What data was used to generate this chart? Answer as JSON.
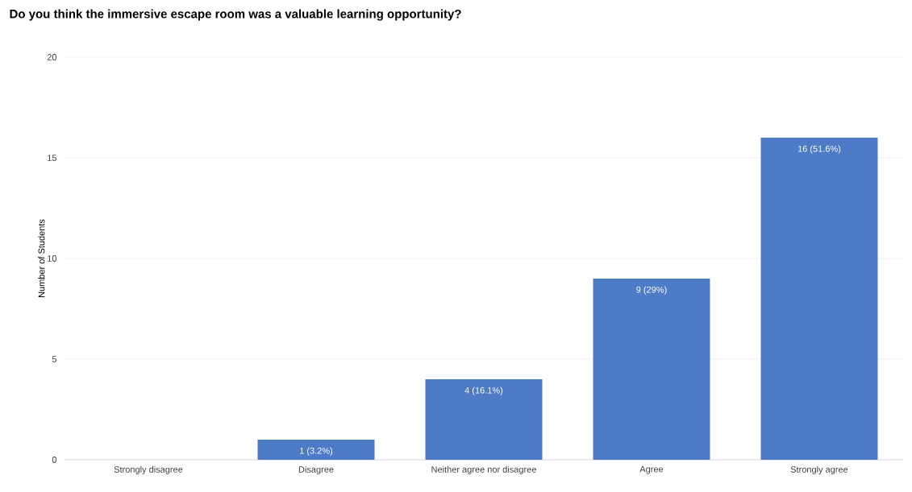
{
  "chart_data": {
    "type": "bar",
    "title": "Do you think the immersive escape room was a valuable learning opportunity?",
    "ylabel": "Number of Students",
    "categories": [
      "Strongly disagree",
      "Disagree",
      "Neither agree nor disagree",
      "Agree",
      "Strongly agree"
    ],
    "values": [
      0,
      1,
      4,
      9,
      16
    ],
    "value_labels": [
      null,
      "1 (3.2%)",
      "4 (16.1%)",
      "9 (29%)",
      "16 (51.6%)"
    ],
    "color": "#4e7bc6",
    "ylim": [
      0,
      20
    ],
    "yticks": [
      0,
      5,
      10,
      15,
      20
    ],
    "grid": "y"
  }
}
